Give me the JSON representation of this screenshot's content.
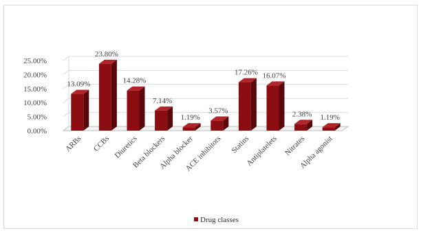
{
  "chart_data": {
    "type": "bar",
    "categories": [
      "ARBs",
      "CCBs",
      "Diuretics",
      "Beta blockers",
      "Alpha blocker",
      "ACE inhibitors",
      "Statins",
      "Antiplatelets",
      "Nitrates",
      "Alpha agonist"
    ],
    "series": [
      {
        "name": "Drug classes",
        "values": [
          13.09,
          23.8,
          14.28,
          7.14,
          1.19,
          3.57,
          17.26,
          16.07,
          2.38,
          1.19
        ],
        "data_labels": [
          "13.09%",
          "23.80%",
          "14.28%",
          "7.14%",
          "1.19%",
          "3.57%",
          "17.26%",
          "16.07%",
          "2.38%",
          "1.19%"
        ]
      }
    ],
    "y_ticks": [
      "0.00%",
      "5.00%",
      "10.00%",
      "15.00%",
      "20.00%",
      "25.00%"
    ],
    "ylim": [
      0,
      25
    ],
    "grid": true,
    "legend_position": "bottom",
    "style": "3d-bar",
    "colors": {
      "bar_front": "#8b0d12",
      "bar_side": "#5a070b",
      "bar_top": "#b3242a",
      "grid": "#d9d9d9",
      "floor": "#bfbfbf"
    }
  }
}
